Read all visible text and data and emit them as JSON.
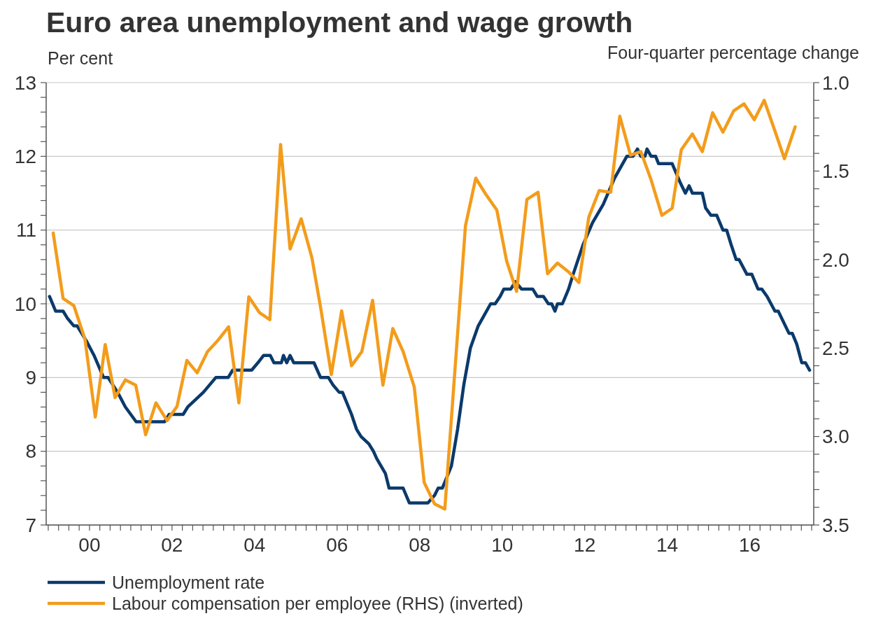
{
  "chart_data": {
    "type": "line",
    "title": "Euro area unemployment and wage growth",
    "ylabel": "Per cent",
    "y2label": "Four-quarter percentage change",
    "xlim": [
      1998.95,
      2017.55
    ],
    "xticks": [
      {
        "value": 1999,
        "label": null
      },
      {
        "value": 1999.25,
        "label": null
      },
      {
        "value": 1999.5,
        "label": null
      },
      {
        "value": 1999.75,
        "label": null
      },
      {
        "value": 2000,
        "label": "00"
      },
      {
        "value": 2000.25,
        "label": null
      },
      {
        "value": 2000.5,
        "label": null
      },
      {
        "value": 2000.75,
        "label": null
      },
      {
        "value": 2001,
        "label": null
      },
      {
        "value": 2001.25,
        "label": null
      },
      {
        "value": 2001.5,
        "label": null
      },
      {
        "value": 2001.75,
        "label": null
      },
      {
        "value": 2002,
        "label": "02"
      },
      {
        "value": 2002.25,
        "label": null
      },
      {
        "value": 2002.5,
        "label": null
      },
      {
        "value": 2002.75,
        "label": null
      },
      {
        "value": 2003,
        "label": null
      },
      {
        "value": 2003.25,
        "label": null
      },
      {
        "value": 2003.5,
        "label": null
      },
      {
        "value": 2003.75,
        "label": null
      },
      {
        "value": 2004,
        "label": "04"
      },
      {
        "value": 2004.25,
        "label": null
      },
      {
        "value": 2004.5,
        "label": null
      },
      {
        "value": 2004.75,
        "label": null
      },
      {
        "value": 2005,
        "label": null
      },
      {
        "value": 2005.25,
        "label": null
      },
      {
        "value": 2005.5,
        "label": null
      },
      {
        "value": 2005.75,
        "label": null
      },
      {
        "value": 2006,
        "label": "06"
      },
      {
        "value": 2006.25,
        "label": null
      },
      {
        "value": 2006.5,
        "label": null
      },
      {
        "value": 2006.75,
        "label": null
      },
      {
        "value": 2007,
        "label": null
      },
      {
        "value": 2007.25,
        "label": null
      },
      {
        "value": 2007.5,
        "label": null
      },
      {
        "value": 2007.75,
        "label": null
      },
      {
        "value": 2008,
        "label": "08"
      },
      {
        "value": 2008.25,
        "label": null
      },
      {
        "value": 2008.5,
        "label": null
      },
      {
        "value": 2008.75,
        "label": null
      },
      {
        "value": 2009,
        "label": null
      },
      {
        "value": 2009.25,
        "label": null
      },
      {
        "value": 2009.5,
        "label": null
      },
      {
        "value": 2009.75,
        "label": null
      },
      {
        "value": 2010,
        "label": "10"
      },
      {
        "value": 2010.25,
        "label": null
      },
      {
        "value": 2010.5,
        "label": null
      },
      {
        "value": 2010.75,
        "label": null
      },
      {
        "value": 2011,
        "label": null
      },
      {
        "value": 2011.25,
        "label": null
      },
      {
        "value": 2011.5,
        "label": null
      },
      {
        "value": 2011.75,
        "label": null
      },
      {
        "value": 2012,
        "label": "12"
      },
      {
        "value": 2012.25,
        "label": null
      },
      {
        "value": 2012.5,
        "label": null
      },
      {
        "value": 2012.75,
        "label": null
      },
      {
        "value": 2013,
        "label": null
      },
      {
        "value": 2013.25,
        "label": null
      },
      {
        "value": 2013.5,
        "label": null
      },
      {
        "value": 2013.75,
        "label": null
      },
      {
        "value": 2014,
        "label": "14"
      },
      {
        "value": 2014.25,
        "label": null
      },
      {
        "value": 2014.5,
        "label": null
      },
      {
        "value": 2014.75,
        "label": null
      },
      {
        "value": 2015,
        "label": null
      },
      {
        "value": 2015.25,
        "label": null
      },
      {
        "value": 2015.5,
        "label": null
      },
      {
        "value": 2015.75,
        "label": null
      },
      {
        "value": 2016,
        "label": "16"
      },
      {
        "value": 2016.25,
        "label": null
      },
      {
        "value": 2016.5,
        "label": null
      },
      {
        "value": 2016.75,
        "label": null
      },
      {
        "value": 2017,
        "label": null
      },
      {
        "value": 2017.25,
        "label": null
      },
      {
        "value": 2017.5,
        "label": null
      }
    ],
    "ylim": [
      7,
      13
    ],
    "yticks": [
      7,
      {
        "value": 7.2,
        "label": null
      },
      {
        "value": 7.4,
        "label": null
      },
      {
        "value": 7.6,
        "label": null
      },
      {
        "value": 7.8,
        "label": null
      },
      8,
      {
        "value": 8.2,
        "label": null
      },
      {
        "value": 8.4,
        "label": null
      },
      {
        "value": 8.6,
        "label": null
      },
      {
        "value": 8.8,
        "label": null
      },
      9,
      {
        "value": 9.2,
        "label": null
      },
      {
        "value": 9.4,
        "label": null
      },
      {
        "value": 9.6,
        "label": null
      },
      {
        "value": 9.8,
        "label": null
      },
      10,
      {
        "value": 10.2,
        "label": null
      },
      {
        "value": 10.4,
        "label": null
      },
      {
        "value": 10.6,
        "label": null
      },
      {
        "value": 10.8,
        "label": null
      },
      11,
      {
        "value": 11.2,
        "label": null
      },
      {
        "value": 11.4,
        "label": null
      },
      {
        "value": 11.6,
        "label": null
      },
      {
        "value": 11.8,
        "label": null
      },
      12,
      {
        "value": 12.2,
        "label": null
      },
      {
        "value": 12.4,
        "label": null
      },
      {
        "value": 12.6,
        "label": null
      },
      {
        "value": 12.8,
        "label": null
      },
      13
    ],
    "y2lim": [
      3.5,
      1.0
    ],
    "y2ticks": [
      {
        "value": 1,
        "label": "1.0"
      },
      {
        "value": 1.1,
        "label": null
      },
      {
        "value": 1.2,
        "label": null
      },
      {
        "value": 1.3,
        "label": null
      },
      {
        "value": 1.4,
        "label": null
      },
      1.5,
      {
        "value": 1.6,
        "label": null
      },
      {
        "value": 1.7,
        "label": null
      },
      {
        "value": 1.8,
        "label": null
      },
      {
        "value": 1.9,
        "label": null
      },
      {
        "value": 2,
        "label": "2.0"
      },
      {
        "value": 2.1,
        "label": null
      },
      {
        "value": 2.2,
        "label": null
      },
      {
        "value": 2.3,
        "label": null
      },
      {
        "value": 2.4,
        "label": null
      },
      2.5,
      {
        "value": 2.6,
        "label": null
      },
      {
        "value": 2.7,
        "label": null
      },
      {
        "value": 2.8,
        "label": null
      },
      {
        "value": 2.9,
        "label": null
      },
      {
        "value": 3,
        "label": "3.0"
      },
      {
        "value": 3.1,
        "label": null
      },
      {
        "value": 3.2,
        "label": null
      },
      {
        "value": 3.3,
        "label": null
      },
      {
        "value": 3.4,
        "label": null
      },
      3.5
    ],
    "grid": "y",
    "legend": "bottom",
    "line_style": "solid",
    "series": [
      {
        "name": "Unemployment rate",
        "color": "#0b3a6b",
        "x": [
          1999.03,
          1999.18,
          1999.36,
          1999.47,
          1999.62,
          1999.7,
          1999.92,
          2000.11,
          2000.34,
          2000.45,
          2000.68,
          2000.87,
          2001.13,
          2001.82,
          2001.93,
          2002.27,
          2002.38,
          2002.57,
          2002.76,
          2002.91,
          2003.06,
          2003.36,
          2003.47,
          2003.93,
          2004.08,
          2004.22,
          2004.38,
          2004.47,
          2004.65,
          2004.7,
          2004.78,
          2004.86,
          2004.95,
          2005.44,
          2005.6,
          2005.79,
          2005.9,
          2006.05,
          2006.13,
          2006.35,
          2006.47,
          2006.58,
          2006.77,
          2006.88,
          2006.96,
          2007.17,
          2007.26,
          2007.6,
          2007.75,
          2008.2,
          2008.36,
          2008.45,
          2008.55,
          2008.77,
          2008.92,
          2009.07,
          2009.23,
          2009.42,
          2009.72,
          2009.83,
          2009.95,
          2010.04,
          2010.21,
          2010.32,
          2010.47,
          2010.74,
          2010.85,
          2011.0,
          2011.12,
          2011.2,
          2011.28,
          2011.34,
          2011.46,
          2011.61,
          2011.72,
          2011.96,
          2012.19,
          2012.45,
          2012.72,
          2013.02,
          2013.17,
          2013.28,
          2013.36,
          2013.46,
          2013.51,
          2013.61,
          2013.72,
          2013.79,
          2014.12,
          2014.31,
          2014.44,
          2014.53,
          2014.61,
          2014.85,
          2014.93,
          2015.06,
          2015.2,
          2015.35,
          2015.44,
          2015.55,
          2015.67,
          2015.74,
          2015.93,
          2016.05,
          2016.2,
          2016.29,
          2016.42,
          2016.61,
          2016.69,
          2016.95,
          2017.03,
          2017.14,
          2017.26,
          2017.35,
          2017.45
        ],
        "values": [
          10.1,
          9.9,
          9.9,
          9.8,
          9.7,
          9.7,
          9.5,
          9.3,
          9.0,
          9.0,
          8.8,
          8.6,
          8.4,
          8.4,
          8.5,
          8.5,
          8.6,
          8.7,
          8.8,
          8.9,
          9.0,
          9.0,
          9.1,
          9.1,
          9.2,
          9.3,
          9.3,
          9.2,
          9.2,
          9.3,
          9.2,
          9.3,
          9.2,
          9.2,
          9.0,
          9.0,
          8.9,
          8.8,
          8.8,
          8.5,
          8.3,
          8.2,
          8.1,
          8.0,
          7.9,
          7.7,
          7.5,
          7.5,
          7.3,
          7.3,
          7.4,
          7.5,
          7.5,
          7.8,
          8.3,
          8.9,
          9.4,
          9.7,
          10.0,
          10.0,
          10.1,
          10.2,
          10.2,
          10.3,
          10.2,
          10.2,
          10.1,
          10.1,
          10.0,
          10.0,
          9.9,
          10.0,
          10.0,
          10.2,
          10.4,
          10.8,
          11.1,
          11.35,
          11.7,
          12.0,
          12.0,
          12.1,
          12.0,
          12.0,
          12.1,
          12.0,
          12.0,
          11.9,
          11.9,
          11.65,
          11.5,
          11.6,
          11.5,
          11.5,
          11.3,
          11.2,
          11.2,
          11.0,
          11.0,
          10.8,
          10.6,
          10.6,
          10.4,
          10.4,
          10.2,
          10.2,
          10.1,
          9.9,
          9.9,
          9.6,
          9.6,
          9.45,
          9.2,
          9.2,
          9.1
        ]
      },
      {
        "name": "Labour compensation per employee (RHS) (inverted)",
        "color": "#f39c1b",
        "axis": "y2",
        "x": [
          1999.12,
          1999.36,
          1999.62,
          1999.89,
          2000.14,
          2000.38,
          2000.62,
          2000.87,
          2001.12,
          2001.36,
          2001.61,
          2001.88,
          2002.12,
          2002.36,
          2002.61,
          2002.86,
          2003.1,
          2003.37,
          2003.62,
          2003.86,
          2004.12,
          2004.37,
          2004.63,
          2004.86,
          2005.13,
          2005.39,
          2005.6,
          2005.86,
          2006.11,
          2006.35,
          2006.6,
          2006.86,
          2007.11,
          2007.35,
          2007.6,
          2007.87,
          2008.11,
          2008.36,
          2008.61,
          2009.11,
          2009.36,
          2009.6,
          2009.87,
          2010.11,
          2010.35,
          2010.6,
          2010.87,
          2011.1,
          2011.34,
          2011.61,
          2011.86,
          2012.1,
          2012.35,
          2012.63,
          2012.85,
          2013.11,
          2013.36,
          2013.61,
          2013.87,
          2014.12,
          2014.34,
          2014.61,
          2014.85,
          2015.1,
          2015.35,
          2015.61,
          2015.86,
          2016.11,
          2016.35,
          2016.59,
          2016.84,
          2017.1
        ],
        "values": [
          1.85,
          2.22,
          2.26,
          2.45,
          2.89,
          2.48,
          2.78,
          2.68,
          2.71,
          2.99,
          2.81,
          2.91,
          2.83,
          2.57,
          2.64,
          2.52,
          2.46,
          2.38,
          2.81,
          2.21,
          2.3,
          2.34,
          1.35,
          1.94,
          1.77,
          1.99,
          2.27,
          2.65,
          2.29,
          2.6,
          2.52,
          2.23,
          2.71,
          2.39,
          2.52,
          2.72,
          3.26,
          3.38,
          3.41,
          1.81,
          1.54,
          1.63,
          1.72,
          2.01,
          2.18,
          1.66,
          1.62,
          2.08,
          2.02,
          2.07,
          2.13,
          1.76,
          1.61,
          1.62,
          1.19,
          1.41,
          1.39,
          1.55,
          1.75,
          1.71,
          1.38,
          1.29,
          1.39,
          1.17,
          1.28,
          1.16,
          1.12,
          1.21,
          1.1,
          1.26,
          1.43,
          1.25
        ]
      }
    ]
  }
}
